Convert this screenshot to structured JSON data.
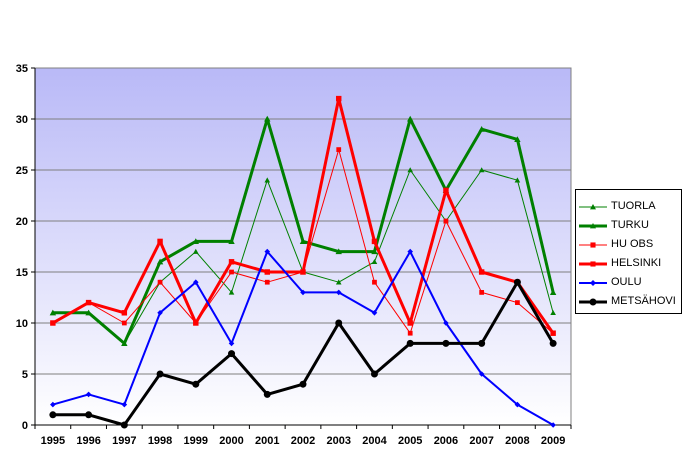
{
  "chart_data": {
    "type": "line",
    "title": "",
    "xlabel": "",
    "ylabel": "",
    "categories": [
      "1995",
      "1996",
      "1997",
      "1998",
      "1999",
      "2000",
      "2001",
      "2002",
      "2003",
      "2004",
      "2005",
      "2006",
      "2007",
      "2008",
      "2009"
    ],
    "ylim": [
      0,
      35
    ],
    "yticks": [
      "0",
      "5",
      "10",
      "15",
      "20",
      "25",
      "30",
      "35"
    ],
    "grid": "horizontal",
    "legend_position": "right",
    "series": [
      {
        "name": "TUORLA",
        "color": "#008000",
        "marker": "triangle",
        "width": 1,
        "values": [
          11,
          11,
          8,
          14,
          17,
          13,
          24,
          15,
          14,
          16,
          25,
          20,
          25,
          24,
          11
        ]
      },
      {
        "name": "TURKU",
        "color": "#008000",
        "marker": "triangle",
        "width": 3,
        "values": [
          11,
          11,
          8,
          16,
          18,
          18,
          30,
          18,
          17,
          17,
          30,
          23,
          29,
          28,
          13
        ]
      },
      {
        "name": "HU OBS",
        "color": "#ff0000",
        "marker": "square",
        "width": 1,
        "values": [
          10,
          12,
          10,
          14,
          10,
          15,
          14,
          15,
          27,
          14,
          9,
          20,
          13,
          12,
          9
        ]
      },
      {
        "name": "HELSINKI",
        "color": "#ff0000",
        "marker": "square",
        "width": 3,
        "values": [
          10,
          12,
          11,
          18,
          10,
          16,
          15,
          15,
          32,
          18,
          10,
          23,
          15,
          14,
          9
        ]
      },
      {
        "name": "OULU",
        "color": "#0000ff",
        "marker": "diamond",
        "width": 2,
        "values": [
          2,
          3,
          2,
          11,
          14,
          8,
          17,
          13,
          13,
          11,
          17,
          10,
          5,
          2,
          0
        ]
      },
      {
        "name": "METSÄHOVI",
        "color": "#000000",
        "marker": "circle",
        "width": 3,
        "values": [
          1,
          1,
          0,
          5,
          4,
          7,
          3,
          4,
          10,
          5,
          8,
          8,
          8,
          14,
          8
        ]
      }
    ]
  }
}
